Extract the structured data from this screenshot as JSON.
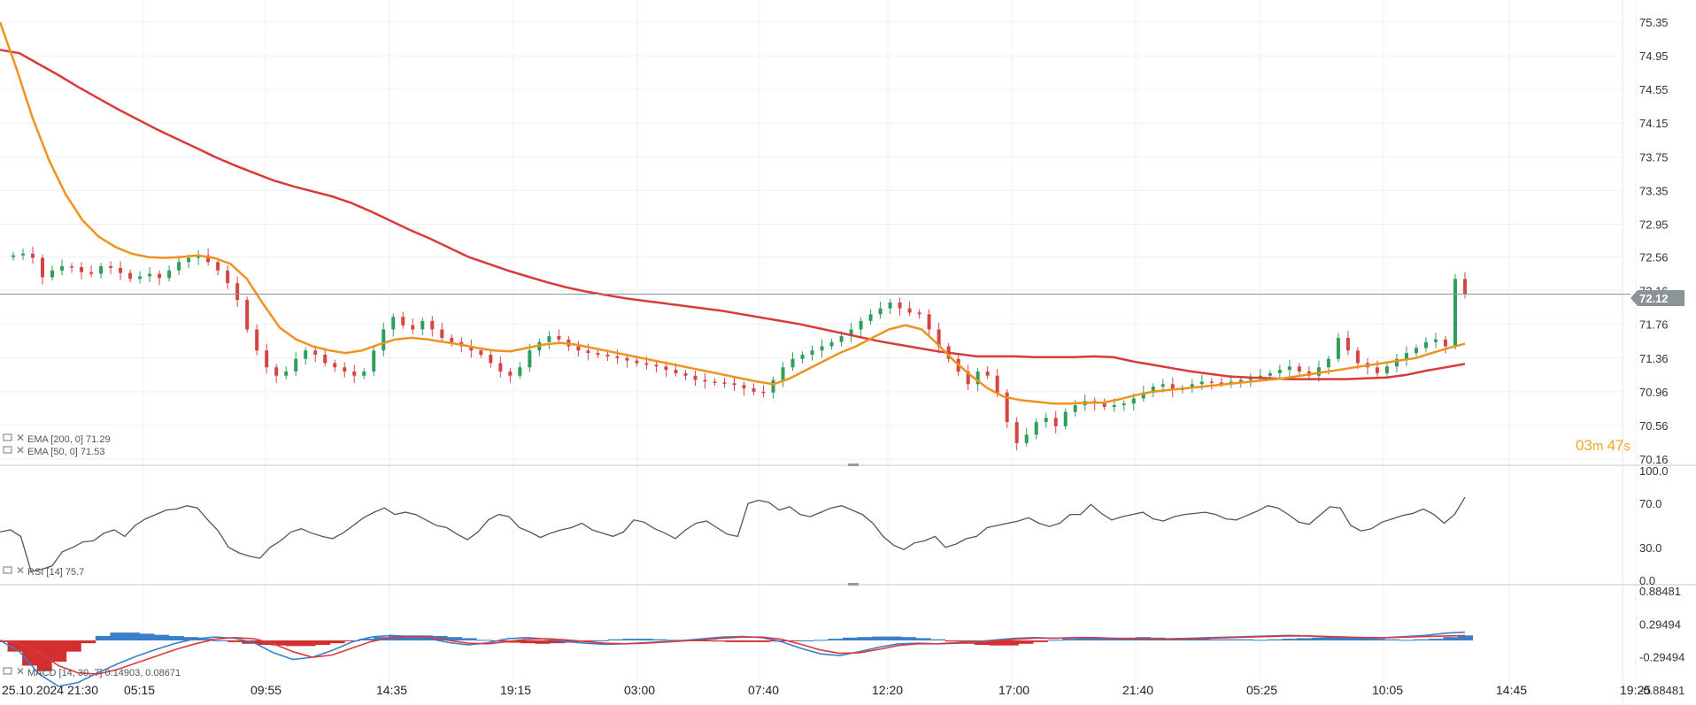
{
  "chart_data": [
    {
      "type": "candlestick",
      "panel": "price",
      "ylim": [
        70.16,
        75.35
      ],
      "y_ticks": [
        "75.35",
        "74.95",
        "74.55",
        "74.15",
        "73.75",
        "73.35",
        "72.95",
        "72.56",
        "72.16",
        "71.76",
        "71.36",
        "70.96",
        "70.56",
        "70.16"
      ],
      "last_price": 72.12,
      "last_price_label": "72.12",
      "close": [
        72.58,
        72.6,
        72.55,
        72.32,
        72.4,
        72.45,
        72.44,
        72.38,
        72.36,
        72.45,
        72.43,
        72.37,
        72.3,
        72.33,
        72.36,
        72.31,
        72.4,
        72.5,
        72.55,
        72.58,
        72.5,
        72.4,
        72.25,
        72.05,
        71.7,
        71.45,
        71.25,
        71.15,
        71.2,
        71.35,
        71.45,
        71.4,
        71.3,
        71.25,
        71.2,
        71.15,
        71.2,
        71.45,
        71.7,
        71.85,
        71.75,
        71.7,
        71.8,
        71.7,
        71.6,
        71.55,
        71.5,
        71.45,
        71.4,
        71.3,
        71.2,
        71.15,
        71.25,
        71.45,
        71.55,
        71.62,
        71.58,
        71.5,
        71.45,
        71.42,
        71.4,
        71.38,
        71.36,
        71.33,
        71.3,
        71.28,
        71.26,
        71.22,
        71.18,
        71.15,
        71.1,
        71.08,
        71.07,
        71.06,
        71.04,
        71.0,
        70.96,
        70.95,
        71.1,
        71.25,
        71.35,
        71.4,
        71.45,
        71.5,
        71.55,
        71.62,
        71.7,
        71.8,
        71.88,
        71.95,
        72.02,
        71.95,
        71.9,
        71.88,
        71.7,
        71.5,
        71.35,
        71.2,
        71.05,
        71.2,
        71.15,
        70.95,
        70.6,
        70.35,
        70.45,
        70.6,
        70.65,
        70.55,
        70.72,
        70.8,
        70.85,
        70.82,
        70.78,
        70.8,
        70.82,
        70.88,
        70.95,
        71.02,
        71.05,
        70.98,
        71.0,
        71.05,
        71.08,
        71.07,
        71.06,
        71.08,
        71.1,
        71.12,
        71.15,
        71.18,
        71.22,
        71.26,
        71.2,
        71.15,
        71.25,
        71.35,
        71.6,
        71.45,
        71.3,
        71.25,
        71.18,
        71.26,
        71.35,
        71.42,
        71.48,
        71.55,
        71.58,
        71.5,
        72.3,
        72.12
      ],
      "series": [
        {
          "name": "EMA [200, 0]",
          "value_label": "71.29",
          "color": "#d93b3b",
          "values": [
            75.02,
            74.98,
            74.85,
            74.72,
            74.58,
            74.45,
            74.32,
            74.2,
            74.08,
            73.97,
            73.86,
            73.75,
            73.65,
            73.56,
            73.47,
            73.4,
            73.34,
            73.28,
            73.2,
            73.1,
            72.99,
            72.88,
            72.78,
            72.67,
            72.56,
            72.48,
            72.4,
            72.33,
            72.26,
            72.2,
            72.15,
            72.11,
            72.07,
            72.04,
            72.01,
            71.98,
            71.95,
            71.92,
            71.88,
            71.84,
            71.8,
            71.76,
            71.71,
            71.66,
            71.61,
            71.56,
            71.52,
            71.48,
            71.44,
            71.41,
            71.38,
            71.38,
            71.38,
            71.37,
            71.37,
            71.37,
            71.38,
            71.37,
            71.32,
            71.28,
            71.24,
            71.2,
            71.17,
            71.14,
            71.13,
            71.12,
            71.11,
            71.11,
            71.11,
            71.11,
            71.12,
            71.13,
            71.16,
            71.21,
            71.25,
            71.29
          ]
        },
        {
          "name": "EMA [50, 0]",
          "value_label": "71.53",
          "color": "#f0921e",
          "values": [
            75.35,
            74.8,
            74.2,
            73.7,
            73.3,
            73.0,
            72.8,
            72.68,
            72.6,
            72.56,
            72.55,
            72.56,
            72.58,
            72.55,
            72.48,
            72.3,
            72.0,
            71.72,
            71.58,
            71.5,
            71.45,
            71.42,
            71.45,
            71.52,
            71.58,
            71.6,
            71.58,
            71.55,
            71.52,
            71.48,
            71.45,
            71.44,
            71.48,
            71.52,
            71.54,
            71.52,
            71.48,
            71.44,
            71.4,
            71.36,
            71.32,
            71.28,
            71.24,
            71.2,
            71.16,
            71.12,
            71.08,
            71.05,
            71.12,
            71.22,
            71.32,
            71.42,
            71.5,
            71.6,
            71.7,
            71.75,
            71.7,
            71.52,
            71.32,
            71.15,
            71.0,
            70.9,
            70.86,
            70.84,
            70.82,
            70.82,
            70.83,
            70.83,
            70.87,
            70.92,
            70.96,
            70.98,
            71.0,
            71.02,
            71.04,
            71.06,
            71.08,
            71.1,
            71.12,
            71.15,
            71.18,
            71.21,
            71.24,
            71.27,
            71.3,
            71.33,
            71.36,
            71.42,
            71.48,
            71.53
          ]
        }
      ]
    },
    {
      "type": "line",
      "panel": "rsi",
      "legend": "RSI [14]",
      "value_label": "75.7",
      "ylim": [
        0,
        100
      ],
      "y_ticks": [
        "100.0",
        "70.0",
        "30.0",
        "0.0"
      ],
      "values": [
        44,
        46,
        40,
        8,
        10,
        13,
        26,
        30,
        35,
        36,
        43,
        46,
        40,
        50,
        56,
        60,
        64,
        65,
        68,
        66,
        55,
        45,
        30,
        25,
        22,
        20,
        30,
        36,
        44,
        47,
        43,
        40,
        38,
        43,
        50,
        57,
        62,
        66,
        60,
        62,
        60,
        55,
        50,
        48,
        42,
        37,
        44,
        55,
        60,
        58,
        48,
        44,
        39,
        43,
        46,
        48,
        52,
        46,
        43,
        40,
        44,
        55,
        53,
        47,
        43,
        38,
        46,
        52,
        54,
        48,
        42,
        40,
        70,
        73,
        71,
        64,
        67,
        60,
        58,
        62,
        66,
        68,
        64,
        60,
        52,
        40,
        32,
        28,
        34,
        36,
        40,
        30,
        33,
        38,
        40,
        48,
        50,
        52,
        54,
        57,
        52,
        49,
        52,
        60,
        60,
        69,
        61,
        55,
        58,
        60,
        62,
        56,
        54,
        58,
        60,
        61,
        62,
        60,
        56,
        55,
        59,
        63,
        68,
        66,
        60,
        53,
        51,
        59,
        67,
        66,
        50,
        45,
        47,
        53,
        56,
        59,
        61,
        65,
        60,
        52,
        60,
        75.7
      ]
    },
    {
      "type": "bar+line",
      "panel": "macd",
      "legend": "MACD [14, 30, 7]",
      "value_label": "0.14903,  0.08671",
      "ylim": [
        -0.88481,
        0.88481
      ],
      "y_ticks": [
        "0.88481",
        "0.29494",
        "-0.29494",
        "-0.88481"
      ],
      "histogram": [
        -0.03,
        -0.2,
        -0.45,
        -0.55,
        -0.38,
        -0.2,
        -0.05,
        0.08,
        0.14,
        0.14,
        0.12,
        0.1,
        0.08,
        0.06,
        0.03,
        0.0,
        -0.03,
        -0.06,
        -0.08,
        -0.09,
        -0.1,
        -0.1,
        -0.08,
        -0.05,
        -0.01,
        0.03,
        0.06,
        0.08,
        0.09,
        0.09,
        0.08,
        0.06,
        0.04,
        0.01,
        -0.02,
        -0.04,
        -0.05,
        -0.06,
        -0.05,
        -0.04,
        -0.02,
        0.0,
        0.02,
        0.03,
        0.03,
        0.02,
        0.01,
        0.0,
        -0.01,
        -0.02,
        -0.03,
        -0.03,
        -0.03,
        -0.02,
        -0.01,
        0.0,
        0.01,
        0.03,
        0.05,
        0.06,
        0.07,
        0.07,
        0.06,
        0.04,
        0.02,
        -0.02,
        -0.06,
        -0.08,
        -0.09,
        -0.09,
        -0.06,
        -0.03,
        0.01,
        0.03,
        0.04,
        0.04,
        0.04,
        0.05,
        0.06,
        0.05,
        0.04,
        0.03,
        0.03,
        0.02,
        0.02,
        0.02,
        0.01,
        0.02,
        0.03,
        0.04,
        0.05,
        0.06,
        0.06,
        0.05,
        0.03,
        0.02,
        0.01,
        0.02,
        0.03,
        0.06,
        0.09
      ],
      "series": [
        {
          "name": "MACD",
          "color": "#3a7fc9",
          "values": [
            0.0,
            -0.2,
            -0.6,
            -0.82,
            -0.75,
            -0.58,
            -0.42,
            -0.28,
            -0.16,
            -0.05,
            0.03,
            0.06,
            0.04,
            -0.04,
            -0.22,
            -0.34,
            -0.3,
            -0.18,
            -0.03,
            0.06,
            0.09,
            0.07,
            0.03,
            -0.04,
            -0.08,
            -0.04,
            0.03,
            0.05,
            0.02,
            -0.02,
            -0.05,
            -0.07,
            -0.06,
            -0.04,
            -0.02,
            0.0,
            0.03,
            0.06,
            0.07,
            0.05,
            -0.02,
            -0.14,
            -0.24,
            -0.27,
            -0.2,
            -0.12,
            -0.06,
            -0.05,
            -0.06,
            -0.04,
            -0.02,
            0.01,
            0.04,
            0.05,
            0.04,
            0.05,
            0.04,
            0.03,
            0.02,
            0.02,
            0.03,
            0.04,
            0.05,
            0.06,
            0.07,
            0.08,
            0.09,
            0.08,
            0.06,
            0.05,
            0.04,
            0.05,
            0.07,
            0.09,
            0.13,
            0.149
          ]
        },
        {
          "name": "Signal",
          "color": "#d93b3b",
          "values": [
            0.0,
            -0.05,
            -0.22,
            -0.45,
            -0.58,
            -0.6,
            -0.52,
            -0.4,
            -0.28,
            -0.16,
            -0.06,
            0.02,
            0.05,
            0.03,
            -0.06,
            -0.2,
            -0.3,
            -0.26,
            -0.14,
            -0.02,
            0.05,
            0.07,
            0.05,
            0.0,
            -0.05,
            -0.06,
            -0.02,
            0.02,
            0.03,
            0.01,
            -0.02,
            -0.05,
            -0.06,
            -0.05,
            -0.03,
            -0.01,
            0.01,
            0.04,
            0.06,
            0.06,
            0.02,
            -0.07,
            -0.17,
            -0.23,
            -0.22,
            -0.16,
            -0.09,
            -0.06,
            -0.06,
            -0.05,
            -0.03,
            -0.01,
            0.02,
            0.04,
            0.04,
            0.05,
            0.05,
            0.04,
            0.03,
            0.02,
            0.02,
            0.03,
            0.04,
            0.05,
            0.06,
            0.07,
            0.08,
            0.08,
            0.07,
            0.06,
            0.05,
            0.05,
            0.06,
            0.07,
            0.08,
            0.087
          ]
        }
      ]
    }
  ],
  "x_axis": {
    "labels": [
      "25.10.2024  21:30",
      "05:15",
      "09:55",
      "14:35",
      "19:15",
      "03:00",
      "07:40",
      "12:20",
      "17:00",
      "21:40",
      "05:25",
      "10:05",
      "14:45",
      "19:25"
    ]
  },
  "countdown": {
    "minutes": "03",
    "m_unit": "m ",
    "seconds": "47",
    "s_unit": "s"
  },
  "colors": {
    "ema200": "#d93b3b",
    "ema50": "#f0921e",
    "candle_up": "#2e9e5b",
    "candle_down": "#d64545",
    "price_line": "#8a9499",
    "price_badge": "#8a9499",
    "countdown": "#f5a623"
  }
}
